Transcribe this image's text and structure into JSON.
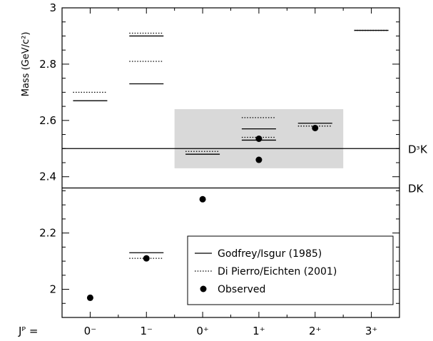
{
  "chart_data": {
    "type": "scatter",
    "ylabel": "Mass (GeV/c²)",
    "xlabel": "Jᴾ =",
    "ylim": [
      1.9,
      3.0
    ],
    "yticks": [
      2.0,
      2.2,
      2.4,
      2.6,
      2.8,
      3.0
    ],
    "ytick_labels": [
      "2",
      "2.2",
      "2.4",
      "2.6",
      "2.8",
      "3"
    ],
    "categories": [
      "0⁻",
      "1⁻",
      "0⁺",
      "1⁺",
      "2⁺",
      "3⁺"
    ],
    "series": [
      {
        "name": "Godfrey/Isgur (1985)",
        "style": "solid",
        "points": [
          {
            "x": "0⁻",
            "y": 2.67
          },
          {
            "x": "1⁻",
            "y": 2.13
          },
          {
            "x": "1⁻",
            "y": 2.73
          },
          {
            "x": "1⁻",
            "y": 2.9
          },
          {
            "x": "0⁺",
            "y": 2.48
          },
          {
            "x": "1⁺",
            "y": 2.53
          },
          {
            "x": "1⁺",
            "y": 2.57
          },
          {
            "x": "2⁺",
            "y": 2.59
          },
          {
            "x": "3⁺",
            "y": 2.92
          }
        ]
      },
      {
        "name": "Di Pierro/Eichten (2001)",
        "style": "dotted",
        "points": [
          {
            "x": "0⁻",
            "y": 2.7
          },
          {
            "x": "1⁻",
            "y": 2.11
          },
          {
            "x": "1⁻",
            "y": 2.81
          },
          {
            "x": "1⁻",
            "y": 2.91
          },
          {
            "x": "0⁺",
            "y": 2.49
          },
          {
            "x": "1⁺",
            "y": 2.54
          },
          {
            "x": "1⁺",
            "y": 2.61
          },
          {
            "x": "2⁺",
            "y": 2.58
          },
          {
            "x": "3⁺",
            "y": 2.92
          }
        ]
      },
      {
        "name": "Observed",
        "style": "marker",
        "points": [
          {
            "x": "0⁻",
            "y": 1.97
          },
          {
            "x": "1⁻",
            "y": 2.11
          },
          {
            "x": "0⁺",
            "y": 2.32
          },
          {
            "x": "1⁺",
            "y": 2.46
          },
          {
            "x": "1⁺",
            "y": 2.535
          },
          {
            "x": "2⁺",
            "y": 2.573
          }
        ]
      }
    ],
    "reference_lines": [
      {
        "label": "DᶟK",
        "y": 2.5
      },
      {
        "label": "DK",
        "y": 2.36
      }
    ],
    "highlight_band": {
      "x_from": "0⁺",
      "x_to": "2⁺",
      "y_range": [
        2.43,
        2.64
      ]
    },
    "legend_placement": "bottom-right",
    "grid": false
  }
}
